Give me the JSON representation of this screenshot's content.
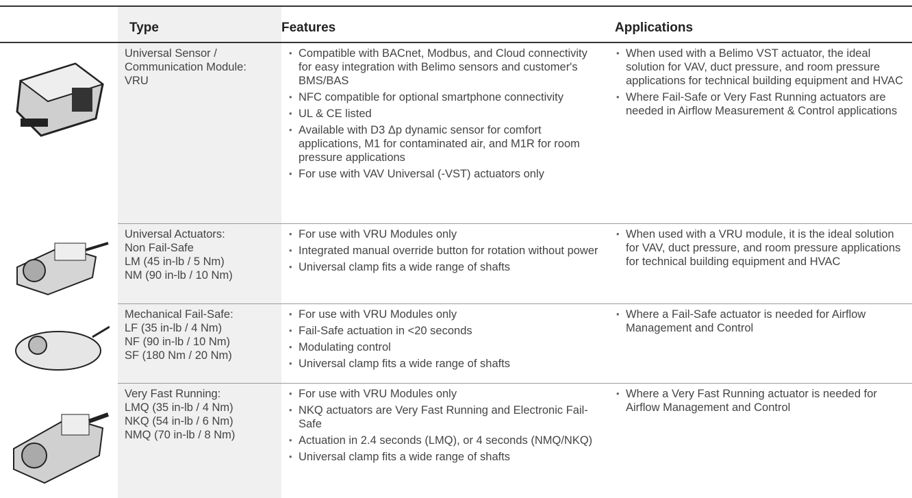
{
  "table": {
    "header": {
      "type": "Type",
      "features": "Features",
      "applications": "Applications"
    },
    "rows": [
      {
        "type": [
          "Universal Sensor /",
          "Communication Module:",
          "VRU"
        ],
        "features": [
          "Compatible with BACnet, Modbus, and Cloud connectivity for easy integration with Belimo sensors and customer's BMS/BAS",
          "NFC compatible for optional smartphone connectivity",
          "UL & CE listed",
          "Available with D3 Δp dynamic sensor for comfort applications, M1 for contaminated air, and M1R for room pressure applications",
          "For use with VAV Universal (-VST) actuators only"
        ],
        "applications": [
          "When used with a Belimo VST actuator, the ideal solution for VAV, duct pressure, and room pressure applications for technical building equipment and HVAC",
          "Where Fail-Safe or Very Fast Running actuators are needed in Airflow Measurement & Control applications"
        ]
      },
      {
        "type": [
          "Universal Actuators:",
          "Non Fail-Safe",
          "LM (45 in-lb / 5 Nm)",
          "NM (90 in-lb / 10 Nm)"
        ],
        "features": [
          "For use with VRU Modules only",
          "Integrated manual override button for rotation without power",
          "Universal clamp fits a wide range of shafts"
        ],
        "applications": [
          "When used with a VRU module, it is the ideal solution for VAV, duct pressure, and room pressure applications for technical building equipment and HVAC"
        ]
      },
      {
        "type": [
          "Mechanical Fail-Safe:",
          "LF (35 in-lb / 4 Nm)",
          "NF (90 in-lb / 10 Nm)",
          "SF (180 Nm / 20 Nm)"
        ],
        "features": [
          "For use with VRU Modules only",
          "Fail-Safe actuation in <20 seconds",
          "Modulating control",
          "Universal clamp fits a wide range of shafts"
        ],
        "applications": [
          "Where a Fail-Safe actuator is needed for Airflow Management and Control"
        ]
      },
      {
        "type": [
          "Very Fast Running:",
          "LMQ (35 in-lb / 4 Nm)",
          "NKQ (54 in-lb / 6 Nm)",
          "NMQ (70 in-lb / 8 Nm)"
        ],
        "features": [
          "For use with VRU Modules only",
          "NKQ actuators are Very Fast Running and Electronic Fail-Safe",
          "Actuation in 2.4 seconds (LMQ), or 4 seconds (NMQ/NKQ)",
          "Universal clamp fits a wide range of shafts"
        ],
        "applications": [
          "Where a Very Fast Running actuator is needed for Airflow Management and Control"
        ]
      }
    ]
  }
}
